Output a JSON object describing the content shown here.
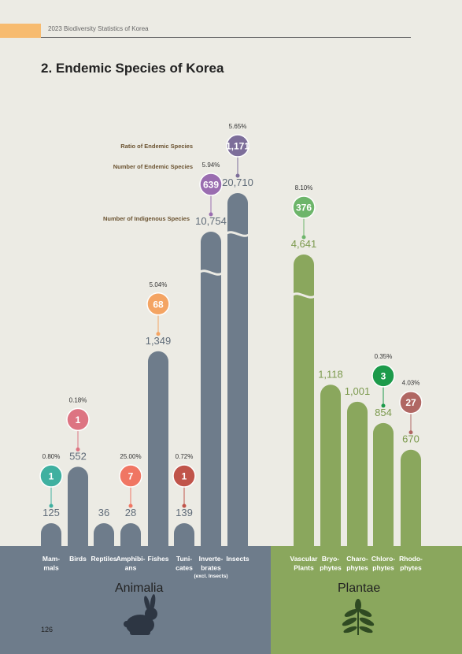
{
  "header": {
    "text": "2023 Biodiversity Statistics of Korea",
    "page_number": "126"
  },
  "title": "2. Endemic Species of Korea",
  "annotations": {
    "ratio": "Ratio of Endemic Species",
    "endemic": "Number of Endemic Species",
    "indigenous": "Number of Indigenous Species"
  },
  "groups": {
    "animalia": "Animalia",
    "plantae": "Plantae"
  },
  "colors": {
    "animal_bar": "#6e7c8b",
    "plant_bar": "#8aa75d",
    "animal_band": "#6e7c8b",
    "plant_band": "#8aa75d"
  },
  "chart_data": {
    "type": "bar",
    "categories": [
      "Mammals",
      "Birds",
      "Reptiles",
      "Amphibians",
      "Fishes",
      "Tunicates",
      "Invertebrates (excl. Insects)",
      "Insects",
      "Vascular Plants",
      "Bryophytes",
      "Charophytes",
      "Chlorophytes",
      "Rhodophytes"
    ],
    "category_labels": [
      [
        "Mam-",
        "mals"
      ],
      [
        "Birds"
      ],
      [
        "Reptiles"
      ],
      [
        "Amphibi-",
        "ans"
      ],
      [
        "Fishes"
      ],
      [
        "Tuni-",
        "cates"
      ],
      [
        "Inverte-",
        "brates",
        "(excl. Insects)"
      ],
      [
        "Insects"
      ],
      [
        "Vascular",
        "Plants"
      ],
      [
        "Bryo-",
        "phytes"
      ],
      [
        "Charo-",
        "phytes"
      ],
      [
        "Chloro-",
        "phytes"
      ],
      [
        "Rhodo-",
        "phytes"
      ]
    ],
    "kingdom": [
      "Animalia",
      "Animalia",
      "Animalia",
      "Animalia",
      "Animalia",
      "Animalia",
      "Animalia",
      "Animalia",
      "Plantae",
      "Plantae",
      "Plantae",
      "Plantae",
      "Plantae"
    ],
    "series": [
      {
        "name": "Number of Indigenous Species",
        "values": [
          125,
          552,
          36,
          28,
          1349,
          139,
          10754,
          20710,
          4641,
          1118,
          1001,
          854,
          670
        ],
        "labels": [
          "125",
          "552",
          "36",
          "28",
          "1,349",
          "139",
          "10,754",
          "20,710",
          "4,641",
          "1,118",
          "1,001",
          "854",
          "670"
        ]
      },
      {
        "name": "Number of Endemic Species",
        "values": [
          1,
          1,
          null,
          7,
          68,
          1,
          639,
          1171,
          376,
          null,
          null,
          3,
          27
        ],
        "labels": [
          "1",
          "1",
          "",
          "7",
          "68",
          "1",
          "639",
          "1,171",
          "376",
          "",
          "",
          "3",
          "27"
        ]
      },
      {
        "name": "Ratio of Endemic Species",
        "values": [
          0.8,
          0.18,
          null,
          25.0,
          5.04,
          0.72,
          5.94,
          5.65,
          8.1,
          null,
          null,
          0.35,
          4.03
        ],
        "labels": [
          "0.80%",
          "0.18%",
          "",
          "25.00%",
          "5.04%",
          "0.72%",
          "5.94%",
          "5.65%",
          "8.10%",
          "",
          "",
          "0.35%",
          "4.03%"
        ]
      }
    ],
    "circle_colors": [
      "#3fb0a0",
      "#dd7482",
      "",
      "#f07663",
      "#f4a463",
      "#c0544a",
      "#9a6db0",
      "#7d6e9a",
      "#6db56a",
      "",
      "",
      "#1c9a4a",
      "#b06763"
    ],
    "broken_axis": [
      false,
      false,
      false,
      false,
      false,
      false,
      true,
      true,
      true,
      false,
      false,
      false,
      false
    ]
  }
}
